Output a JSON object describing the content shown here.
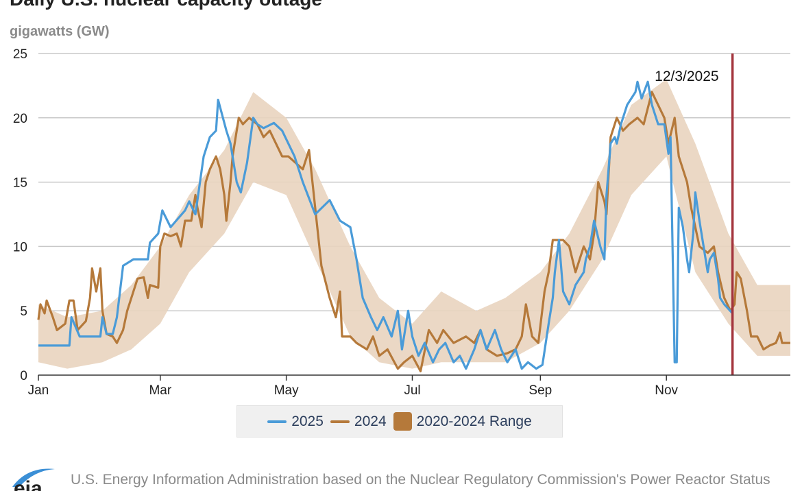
{
  "title": "Daily U.S. nuclear capacity outage",
  "subtitle": "gigawatts (GW)",
  "source": "U.S. Energy Information Administration based on the Nuclear Regulatory Commission's Power Reactor Status",
  "logo_text": "eia",
  "colors": {
    "s2025": "#4a9bd8",
    "s2024": "#b5793a",
    "range": "#e9d4bf",
    "range_legend": "#b5793a",
    "marker": "#a3343c",
    "grid": "#c8c8c8"
  },
  "legend": [
    {
      "label": "2025"
    },
    {
      "label": "2024"
    },
    {
      "label": "2020-2024 Range"
    }
  ],
  "chart_data": {
    "type": "line",
    "title": "Daily U.S. nuclear capacity outage",
    "ylabel": "gigawatts (GW)",
    "ylim": [
      0,
      25
    ],
    "yticks": [
      "0",
      "5",
      "10",
      "15",
      "20",
      "25"
    ],
    "xticks": [
      {
        "label": "Jan",
        "date": "01-01"
      },
      {
        "label": "Mar",
        "date": "03-01"
      },
      {
        "label": "May",
        "date": "05-01"
      },
      {
        "label": "Jul",
        "date": "07-01"
      },
      {
        "label": "Sep",
        "date": "09-01"
      },
      {
        "label": "Nov",
        "date": "11-01"
      }
    ],
    "xlim": [
      "01-01",
      "12-31"
    ],
    "grid": "horizontal",
    "legend_position": "bottom",
    "marker": {
      "date": "12-03",
      "label": "12/3/2025"
    },
    "series": [
      {
        "name": "2025",
        "points": [
          [
            "01-01",
            2.3
          ],
          [
            "01-16",
            2.3
          ],
          [
            "01-17",
            4.5
          ],
          [
            "01-21",
            3.0
          ],
          [
            "01-31",
            3.0
          ],
          [
            "02-01",
            4.5
          ],
          [
            "02-03",
            3.2
          ],
          [
            "02-06",
            3.2
          ],
          [
            "02-08",
            4.5
          ],
          [
            "02-11",
            8.5
          ],
          [
            "02-16",
            9.0
          ],
          [
            "02-23",
            9.0
          ],
          [
            "02-24",
            10.3
          ],
          [
            "02-28",
            11.0
          ],
          [
            "03-02",
            12.8
          ],
          [
            "03-06",
            11.5
          ],
          [
            "03-13",
            12.8
          ],
          [
            "03-15",
            13.5
          ],
          [
            "03-18",
            12.5
          ],
          [
            "03-22",
            17.0
          ],
          [
            "03-25",
            18.5
          ],
          [
            "03-28",
            19.0
          ],
          [
            "03-29",
            21.4
          ],
          [
            "04-02",
            19.0
          ],
          [
            "04-04",
            18.0
          ],
          [
            "04-07",
            15.0
          ],
          [
            "04-09",
            14.2
          ],
          [
            "04-12",
            16.5
          ],
          [
            "04-15",
            20.0
          ],
          [
            "04-17",
            19.5
          ],
          [
            "04-20",
            19.2
          ],
          [
            "04-25",
            19.6
          ],
          [
            "04-29",
            19.0
          ],
          [
            "05-02",
            18.0
          ],
          [
            "05-05",
            17.0
          ],
          [
            "05-09",
            15.0
          ],
          [
            "05-15",
            12.5
          ],
          [
            "05-22",
            13.6
          ],
          [
            "05-27",
            12.0
          ],
          [
            "06-01",
            11.5
          ],
          [
            "06-04",
            9.0
          ],
          [
            "06-07",
            6.0
          ],
          [
            "06-11",
            4.5
          ],
          [
            "06-14",
            3.5
          ],
          [
            "06-17",
            4.5
          ],
          [
            "06-21",
            3.0
          ],
          [
            "06-24",
            5.0
          ],
          [
            "06-26",
            2.0
          ],
          [
            "06-29",
            5.0
          ],
          [
            "07-01",
            3.0
          ],
          [
            "07-04",
            1.5
          ],
          [
            "07-07",
            2.5
          ],
          [
            "07-11",
            1.0
          ],
          [
            "07-14",
            2.0
          ],
          [
            "07-17",
            2.5
          ],
          [
            "07-21",
            1.0
          ],
          [
            "07-24",
            1.5
          ],
          [
            "07-27",
            0.5
          ],
          [
            "07-31",
            2.0
          ],
          [
            "08-03",
            3.5
          ],
          [
            "08-06",
            2.0
          ],
          [
            "08-10",
            3.5
          ],
          [
            "08-13",
            2.0
          ],
          [
            "08-16",
            1.0
          ],
          [
            "08-20",
            2.0
          ],
          [
            "08-23",
            0.5
          ],
          [
            "08-26",
            1.0
          ],
          [
            "08-30",
            0.5
          ],
          [
            "09-02",
            0.8
          ],
          [
            "09-05",
            4.0
          ],
          [
            "09-07",
            6.0
          ],
          [
            "09-08",
            8.0
          ],
          [
            "09-10",
            10.5
          ],
          [
            "09-12",
            6.5
          ],
          [
            "09-15",
            5.5
          ],
          [
            "09-18",
            7.0
          ],
          [
            "09-22",
            8.0
          ],
          [
            "09-23",
            9.0
          ],
          [
            "09-25",
            10.0
          ],
          [
            "09-27",
            12.0
          ],
          [
            "09-30",
            10.0
          ],
          [
            "10-02",
            9.0
          ],
          [
            "10-03",
            14.0
          ],
          [
            "10-05",
            18.0
          ],
          [
            "10-07",
            18.5
          ],
          [
            "10-08",
            18.0
          ],
          [
            "10-10",
            19.5
          ],
          [
            "10-13",
            21.0
          ],
          [
            "10-17",
            22.0
          ],
          [
            "10-18",
            22.8
          ],
          [
            "10-20",
            21.5
          ],
          [
            "10-23",
            22.8
          ],
          [
            "10-25",
            21.0
          ],
          [
            "10-28",
            19.5
          ],
          [
            "10-31",
            19.5
          ],
          [
            "11-02",
            17.2
          ],
          [
            "11-03",
            18.5
          ],
          [
            "11-05",
            1.0
          ],
          [
            "11-06",
            1.0
          ],
          [
            "11-07",
            13.0
          ],
          [
            "11-09",
            11.5
          ],
          [
            "11-11",
            9.0
          ],
          [
            "11-12",
            8.0
          ],
          [
            "11-14",
            11.0
          ],
          [
            "11-15",
            14.2
          ],
          [
            "11-17",
            12.0
          ],
          [
            "11-19",
            10.0
          ],
          [
            "11-21",
            8.0
          ],
          [
            "11-22",
            9.0
          ],
          [
            "11-24",
            9.5
          ],
          [
            "11-26",
            7.5
          ],
          [
            "11-27",
            6.0
          ],
          [
            "11-29",
            5.5
          ],
          [
            "12-03",
            4.8
          ]
        ]
      },
      {
        "name": "2024",
        "points": [
          [
            "01-01",
            4.3
          ],
          [
            "01-02",
            5.5
          ],
          [
            "01-04",
            4.8
          ],
          [
            "01-05",
            5.8
          ],
          [
            "01-08",
            4.5
          ],
          [
            "01-10",
            3.5
          ],
          [
            "01-14",
            4.0
          ],
          [
            "01-16",
            5.8
          ],
          [
            "01-18",
            5.8
          ],
          [
            "01-20",
            3.5
          ],
          [
            "01-24",
            4.2
          ],
          [
            "01-26",
            6.0
          ],
          [
            "01-27",
            8.3
          ],
          [
            "01-29",
            6.5
          ],
          [
            "01-31",
            8.3
          ],
          [
            "02-01",
            5.0
          ],
          [
            "02-03",
            3.2
          ],
          [
            "02-06",
            3.0
          ],
          [
            "02-08",
            2.5
          ],
          [
            "02-11",
            3.5
          ],
          [
            "02-13",
            5.0
          ],
          [
            "02-16",
            6.5
          ],
          [
            "02-18",
            7.5
          ],
          [
            "02-21",
            7.6
          ],
          [
            "02-23",
            6.0
          ],
          [
            "02-24",
            7.0
          ],
          [
            "02-28",
            6.8
          ],
          [
            "03-01",
            10.0
          ],
          [
            "03-03",
            11.0
          ],
          [
            "03-06",
            10.8
          ],
          [
            "03-09",
            11.0
          ],
          [
            "03-11",
            10.0
          ],
          [
            "03-13",
            12.0
          ],
          [
            "03-16",
            12.0
          ],
          [
            "03-18",
            14.0
          ],
          [
            "03-19",
            13.0
          ],
          [
            "03-21",
            11.5
          ],
          [
            "03-23",
            15.0
          ],
          [
            "03-25",
            16.0
          ],
          [
            "03-28",
            17.0
          ],
          [
            "03-30",
            16.0
          ],
          [
            "04-01",
            14.0
          ],
          [
            "04-02",
            12.0
          ],
          [
            "04-04",
            15.0
          ],
          [
            "04-05",
            17.0
          ],
          [
            "04-08",
            20.0
          ],
          [
            "04-10",
            19.5
          ],
          [
            "04-13",
            20.0
          ],
          [
            "04-17",
            19.5
          ],
          [
            "04-20",
            18.5
          ],
          [
            "04-23",
            19.0
          ],
          [
            "04-26",
            18.0
          ],
          [
            "04-29",
            17.0
          ],
          [
            "05-02",
            17.0
          ],
          [
            "05-09",
            16.0
          ],
          [
            "05-12",
            17.5
          ],
          [
            "05-15",
            13.0
          ],
          [
            "05-18",
            8.5
          ],
          [
            "05-22",
            6.0
          ],
          [
            "05-25",
            4.5
          ],
          [
            "05-27",
            6.5
          ],
          [
            "05-28",
            3.0
          ],
          [
            "06-01",
            3.0
          ],
          [
            "06-04",
            2.5
          ],
          [
            "06-09",
            2.0
          ],
          [
            "06-12",
            3.0
          ],
          [
            "06-15",
            1.5
          ],
          [
            "06-19",
            2.0
          ],
          [
            "06-24",
            0.5
          ],
          [
            "06-27",
            1.0
          ],
          [
            "07-01",
            1.5
          ],
          [
            "07-05",
            0.3
          ],
          [
            "07-09",
            3.5
          ],
          [
            "07-13",
            2.5
          ],
          [
            "07-16",
            3.5
          ],
          [
            "07-21",
            2.5
          ],
          [
            "07-27",
            3.0
          ],
          [
            "07-31",
            2.5
          ],
          [
            "08-03",
            3.5
          ],
          [
            "08-06",
            2.0
          ],
          [
            "08-11",
            1.5
          ],
          [
            "08-16",
            1.7
          ],
          [
            "08-20",
            2.0
          ],
          [
            "08-23",
            3.0
          ],
          [
            "08-25",
            5.5
          ],
          [
            "08-28",
            3.0
          ],
          [
            "08-31",
            2.5
          ],
          [
            "09-03",
            6.5
          ],
          [
            "09-05",
            8.0
          ],
          [
            "09-07",
            10.5
          ],
          [
            "09-12",
            10.5
          ],
          [
            "09-15",
            10.0
          ],
          [
            "09-18",
            8.0
          ],
          [
            "09-22",
            10.0
          ],
          [
            "09-25",
            9.0
          ],
          [
            "09-27",
            11.0
          ],
          [
            "09-29",
            15.0
          ],
          [
            "10-02",
            13.5
          ],
          [
            "10-03",
            12.5
          ],
          [
            "10-05",
            18.5
          ],
          [
            "10-08",
            20.0
          ],
          [
            "10-11",
            19.0
          ],
          [
            "10-14",
            19.5
          ],
          [
            "10-18",
            20.0
          ],
          [
            "10-21",
            19.5
          ],
          [
            "10-25",
            22.0
          ],
          [
            "10-28",
            21.0
          ],
          [
            "10-31",
            20.0
          ],
          [
            "11-02",
            18.0
          ],
          [
            "11-05",
            20.0
          ],
          [
            "11-07",
            17.0
          ],
          [
            "11-11",
            15.0
          ],
          [
            "11-13",
            13.0
          ],
          [
            "11-17",
            10.0
          ],
          [
            "11-21",
            9.5
          ],
          [
            "11-24",
            10.0
          ],
          [
            "11-26",
            8.0
          ],
          [
            "11-29",
            6.0
          ],
          [
            "12-02",
            5.0
          ],
          [
            "12-04",
            5.5
          ],
          [
            "12-05",
            8.0
          ],
          [
            "12-07",
            7.5
          ],
          [
            "12-10",
            5.0
          ],
          [
            "12-12",
            3.0
          ],
          [
            "12-15",
            3.0
          ],
          [
            "12-18",
            2.0
          ],
          [
            "12-21",
            2.3
          ],
          [
            "12-24",
            2.5
          ],
          [
            "12-26",
            3.3
          ],
          [
            "12-27",
            2.5
          ],
          [
            "12-31",
            2.5
          ]
        ]
      }
    ],
    "range": {
      "name": "2020-2024 Range",
      "points": [
        [
          "01-01",
          1.0,
          5.5
        ],
        [
          "01-15",
          0.5,
          4.5
        ],
        [
          "02-01",
          1.0,
          5.0
        ],
        [
          "02-15",
          2.0,
          7.0
        ],
        [
          "03-01",
          4.0,
          10.0
        ],
        [
          "03-15",
          8.0,
          14.0
        ],
        [
          "04-01",
          11.0,
          17.5
        ],
        [
          "04-15",
          15.0,
          22.0
        ],
        [
          "05-01",
          14.0,
          20.0
        ],
        [
          "05-15",
          9.0,
          16.0
        ],
        [
          "06-01",
          3.0,
          10.0
        ],
        [
          "06-15",
          1.0,
          6.0
        ],
        [
          "07-01",
          0.5,
          4.0
        ],
        [
          "07-15",
          1.0,
          6.5
        ],
        [
          "08-01",
          1.0,
          5.0
        ],
        [
          "08-15",
          1.0,
          6.0
        ],
        [
          "09-01",
          2.5,
          8.0
        ],
        [
          "09-15",
          5.0,
          11.0
        ],
        [
          "10-01",
          9.0,
          16.0
        ],
        [
          "10-15",
          14.0,
          21.0
        ],
        [
          "11-01",
          17.0,
          23.0
        ],
        [
          "11-15",
          8.0,
          18.0
        ],
        [
          "12-01",
          4.0,
          11.0
        ],
        [
          "12-15",
          1.5,
          7.0
        ],
        [
          "12-31",
          1.5,
          7.0
        ]
      ]
    }
  }
}
